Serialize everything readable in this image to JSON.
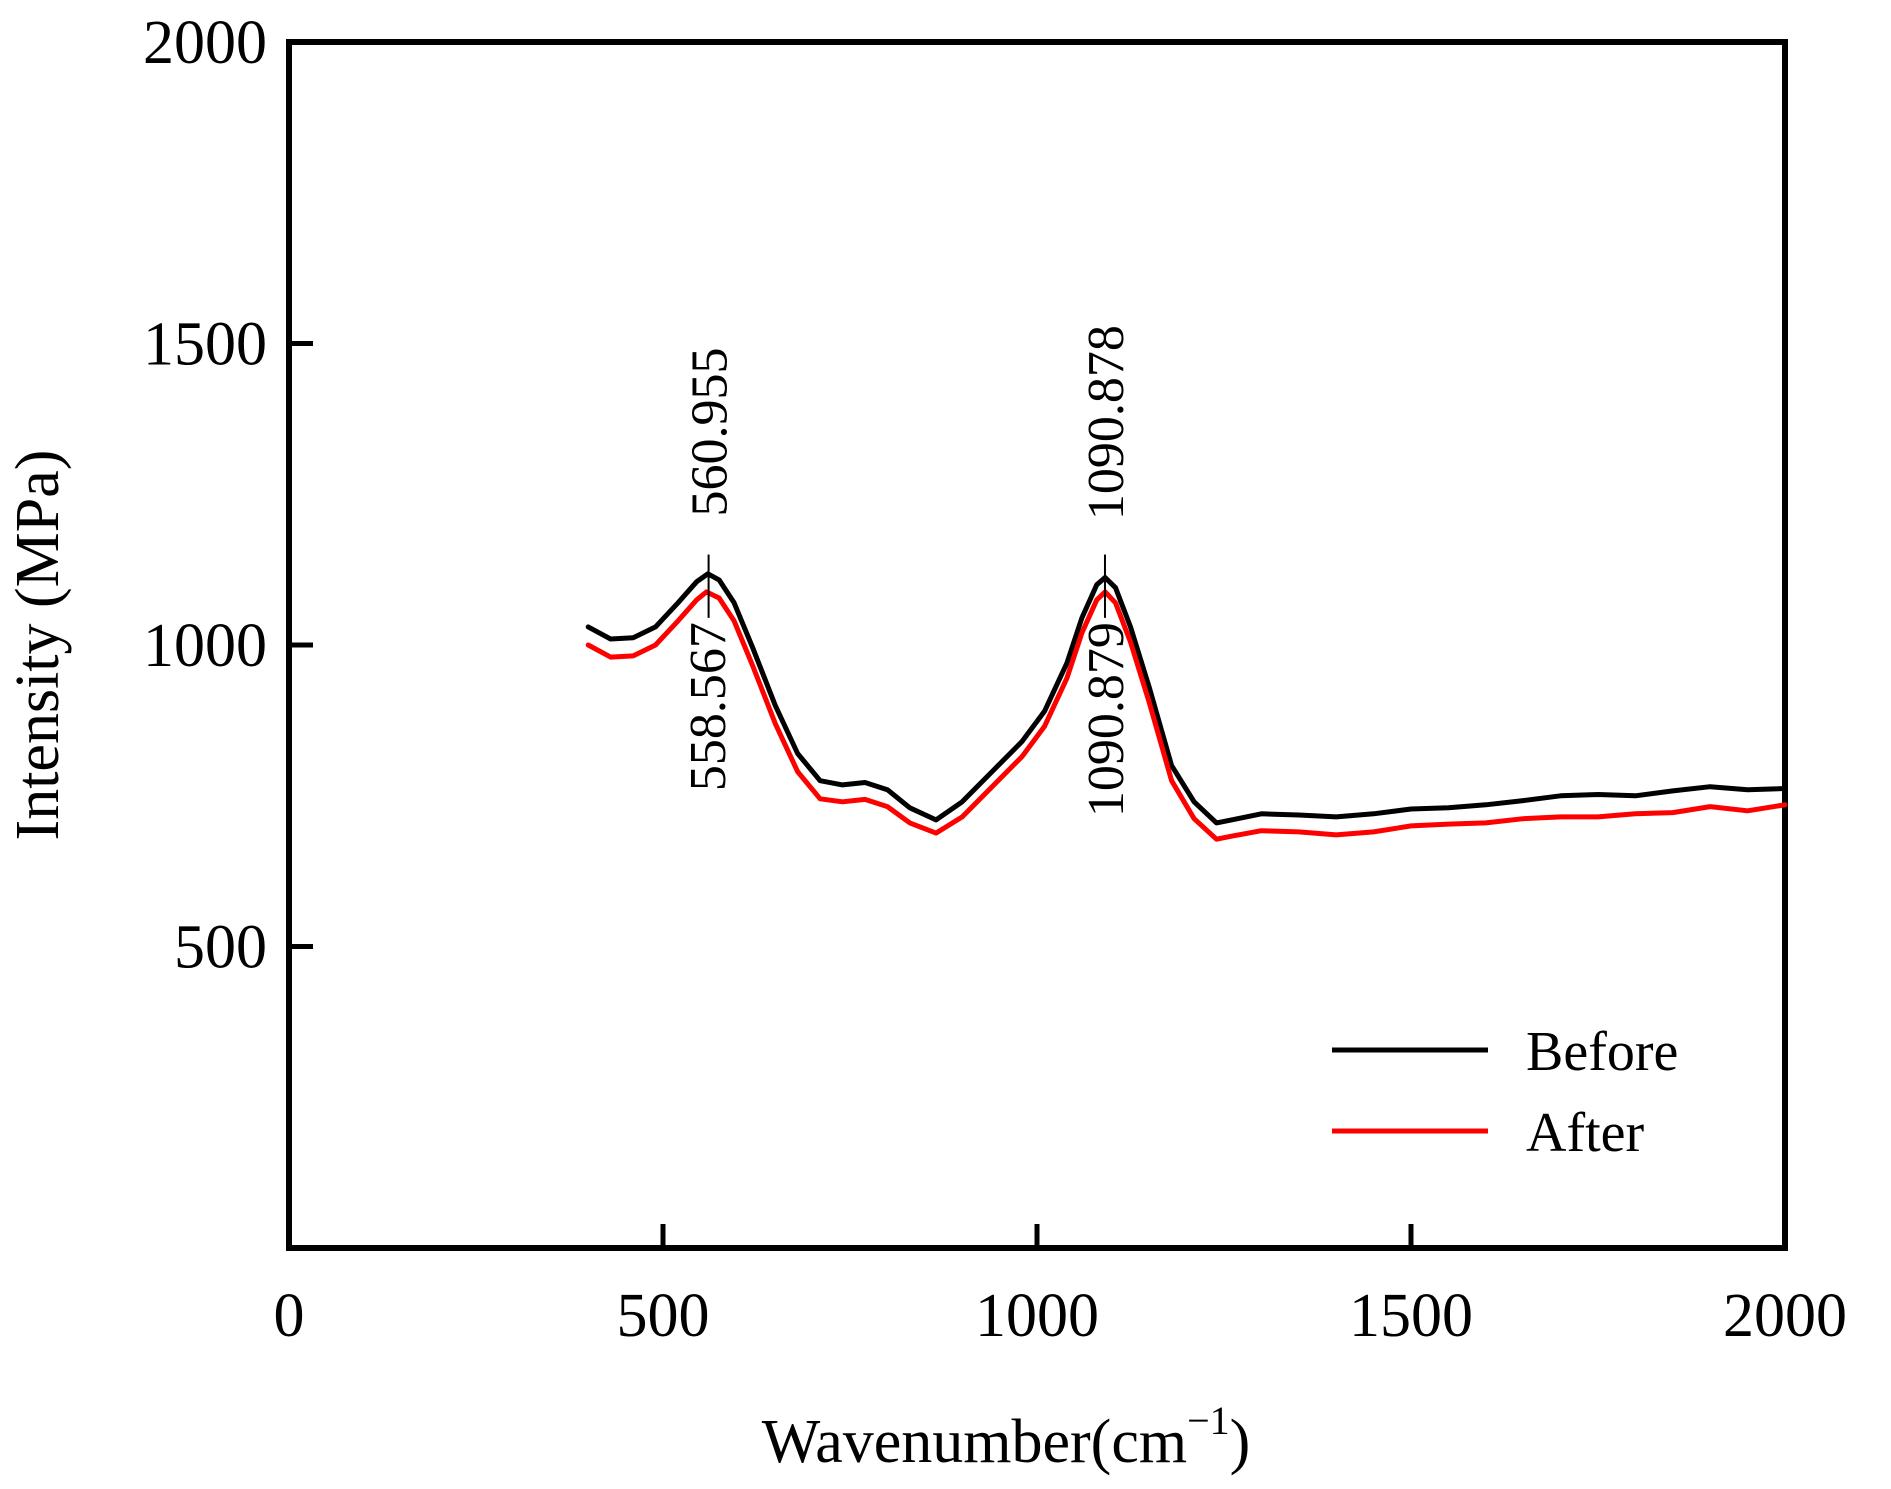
{
  "chart_data": {
    "type": "line",
    "title": "",
    "xlabel": "Wavenumber(cm",
    "xlabel_sup": "−1",
    "xlabel_close": ")",
    "ylabel": "Intensity (MPa)",
    "xlim": [
      0,
      2000
    ],
    "ylim": [
      0,
      2000
    ],
    "x_ticks": [
      0,
      500,
      1000,
      1500,
      2000
    ],
    "y_ticks": [
      500,
      1000,
      1500,
      2000
    ],
    "x_tick_labels": [
      "0",
      "500",
      "1000",
      "1500",
      "2000"
    ],
    "y_tick_labels": [
      "500",
      "1000",
      "1500",
      "2000"
    ],
    "grid": false,
    "legend_position": "bottom-right",
    "series": [
      {
        "name": "Before",
        "color": "#000000",
        "x": [
          400,
          430,
          460,
          490,
          520,
          545,
          560,
          575,
          595,
          620,
          650,
          680,
          710,
          740,
          770,
          800,
          830,
          865,
          900,
          940,
          980,
          1010,
          1040,
          1060,
          1080,
          1091,
          1105,
          1125,
          1150,
          1180,
          1210,
          1240,
          1260,
          1300,
          1350,
          1400,
          1450,
          1500,
          1550,
          1600,
          1650,
          1700,
          1750,
          1800,
          1850,
          1900,
          1950,
          2000
        ],
        "y": [
          1030,
          1010,
          1012,
          1030,
          1070,
          1105,
          1118,
          1108,
          1070,
          995,
          900,
          820,
          775,
          768,
          772,
          760,
          730,
          710,
          740,
          790,
          840,
          890,
          970,
          1045,
          1100,
          1112,
          1095,
          1030,
          930,
          800,
          740,
          705,
          710,
          720,
          718,
          715,
          720,
          728,
          730,
          735,
          742,
          750,
          752,
          750,
          758,
          765,
          760,
          762
        ]
      },
      {
        "name": "After",
        "color": "#ff0000",
        "x": [
          400,
          430,
          460,
          490,
          520,
          545,
          558,
          575,
          595,
          620,
          650,
          680,
          710,
          740,
          770,
          800,
          830,
          865,
          900,
          940,
          980,
          1010,
          1040,
          1060,
          1080,
          1091,
          1105,
          1125,
          1150,
          1180,
          1210,
          1240,
          1260,
          1300,
          1350,
          1400,
          1450,
          1500,
          1550,
          1600,
          1650,
          1700,
          1750,
          1800,
          1850,
          1900,
          1950,
          2000
        ],
        "y": [
          1000,
          980,
          982,
          1000,
          1040,
          1075,
          1088,
          1078,
          1040,
          965,
          870,
          790,
          745,
          740,
          744,
          732,
          705,
          688,
          715,
          765,
          815,
          865,
          945,
          1020,
          1075,
          1088,
          1070,
          1005,
          905,
          775,
          712,
          678,
          683,
          692,
          690,
          685,
          690,
          700,
          703,
          705,
          712,
          715,
          715,
          720,
          722,
          732,
          725,
          735
        ]
      }
    ],
    "annotations": [
      {
        "text": "560.955",
        "x": 560.955,
        "anchor_y": 1118,
        "side": "above"
      },
      {
        "text": "558.567",
        "x": 558.567,
        "anchor_y": 1088,
        "side": "below"
      },
      {
        "text": "1090.878",
        "x": 1090.878,
        "anchor_y": 1112,
        "side": "above"
      },
      {
        "text": "1090.879",
        "x": 1090.879,
        "anchor_y": 1088,
        "side": "below"
      }
    ]
  }
}
